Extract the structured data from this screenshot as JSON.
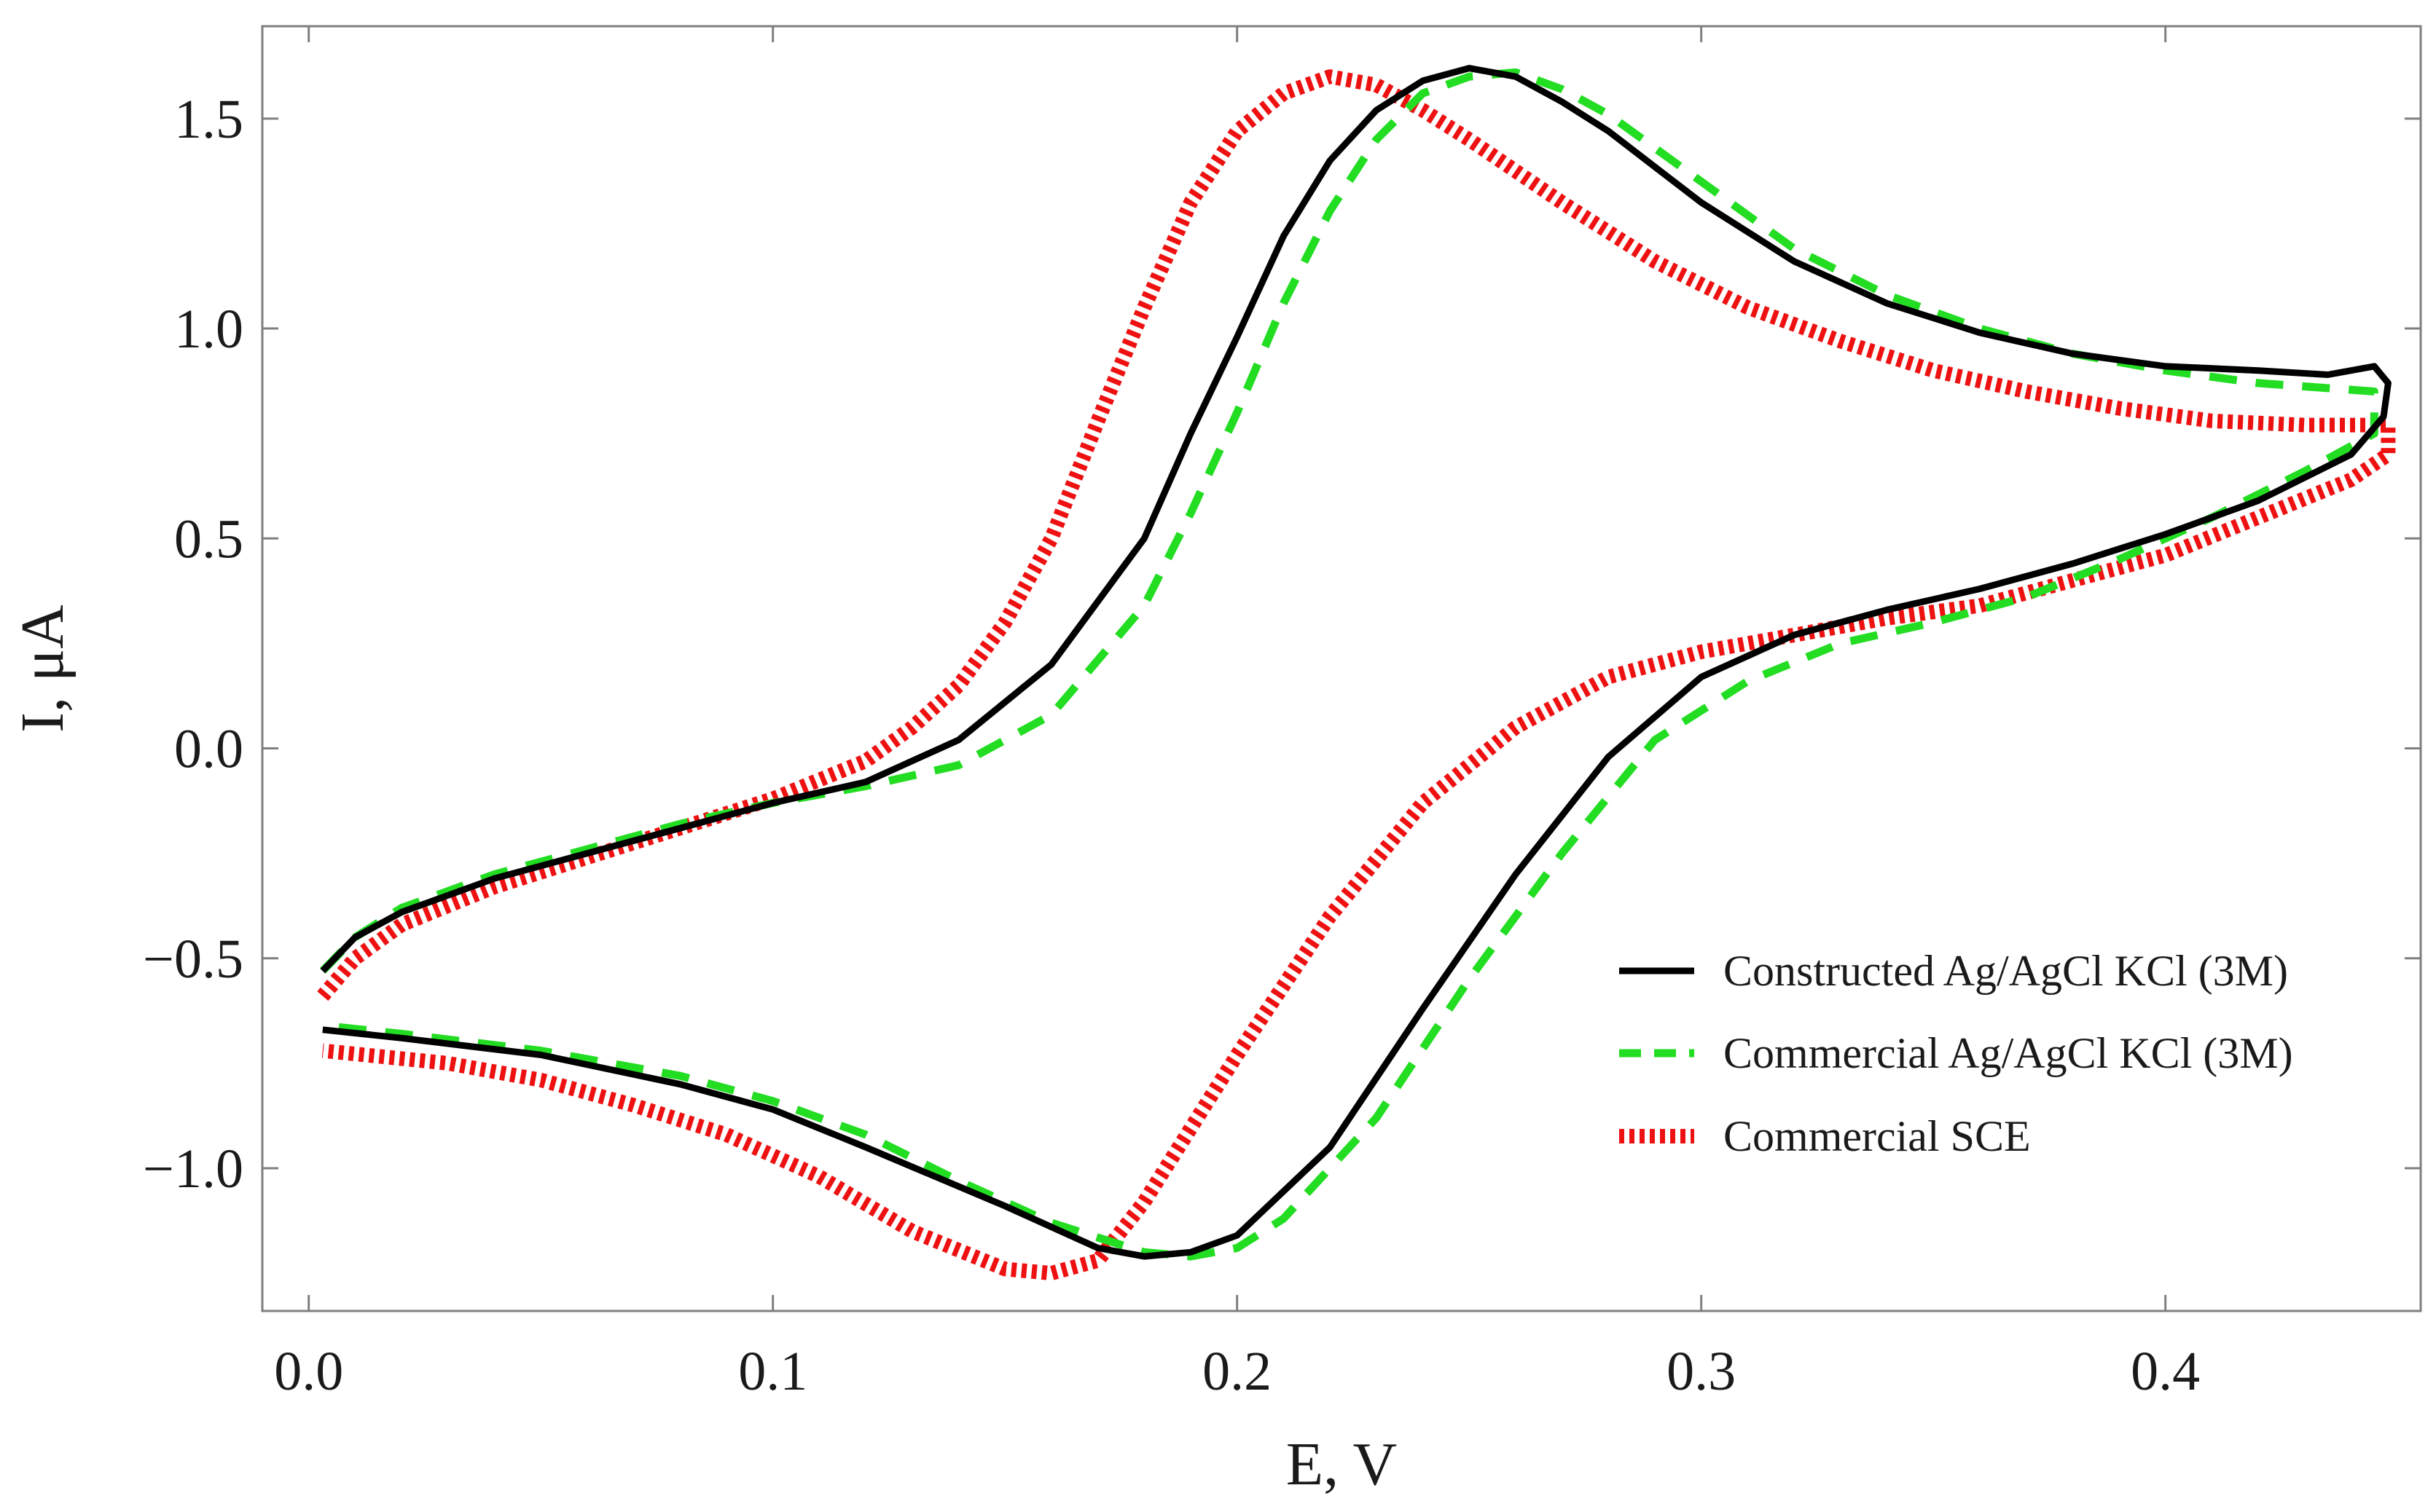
{
  "chart_data": {
    "type": "line",
    "xlabel": "E, V",
    "ylabel": "I, μA",
    "xlim": [
      -0.01,
      0.455
    ],
    "ylim": [
      -1.34,
      1.72
    ],
    "xticks": [
      {
        "value": 0.0,
        "label": "0.0"
      },
      {
        "value": 0.1,
        "label": "0.1"
      },
      {
        "value": 0.2,
        "label": "0.2"
      },
      {
        "value": 0.3,
        "label": "0.3"
      },
      {
        "value": 0.4,
        "label": "0.4"
      }
    ],
    "yticks": [
      {
        "value": -1.0,
        "label": "−1.0"
      },
      {
        "value": -0.5,
        "label": "−0.5"
      },
      {
        "value": 0.0,
        "label": "0.0"
      },
      {
        "value": 0.5,
        "label": "0.5"
      },
      {
        "value": 1.0,
        "label": "1.0"
      },
      {
        "value": 1.5,
        "label": "1.5"
      }
    ],
    "grid": false,
    "legend_position": "bottom-right",
    "series": [
      {
        "name": "Constructed Ag/AgCl KCl (3M)",
        "color": "#000000",
        "style": "solid",
        "points": [
          [
            0.003,
            -0.53
          ],
          [
            0.01,
            -0.45
          ],
          [
            0.02,
            -0.39
          ],
          [
            0.04,
            -0.31
          ],
          [
            0.06,
            -0.25
          ],
          [
            0.08,
            -0.19
          ],
          [
            0.1,
            -0.13
          ],
          [
            0.12,
            -0.08
          ],
          [
            0.14,
            0.02
          ],
          [
            0.16,
            0.2
          ],
          [
            0.18,
            0.5
          ],
          [
            0.19,
            0.75
          ],
          [
            0.2,
            0.98
          ],
          [
            0.21,
            1.22
          ],
          [
            0.22,
            1.4
          ],
          [
            0.23,
            1.52
          ],
          [
            0.24,
            1.59
          ],
          [
            0.25,
            1.62
          ],
          [
            0.26,
            1.6
          ],
          [
            0.27,
            1.54
          ],
          [
            0.28,
            1.47
          ],
          [
            0.3,
            1.3
          ],
          [
            0.32,
            1.16
          ],
          [
            0.34,
            1.06
          ],
          [
            0.36,
            0.99
          ],
          [
            0.38,
            0.94
          ],
          [
            0.4,
            0.91
          ],
          [
            0.42,
            0.9
          ],
          [
            0.435,
            0.89
          ],
          [
            0.445,
            0.91
          ],
          [
            0.448,
            0.87
          ],
          [
            0.447,
            0.79
          ],
          [
            0.44,
            0.7
          ],
          [
            0.42,
            0.59
          ],
          [
            0.4,
            0.51
          ],
          [
            0.38,
            0.44
          ],
          [
            0.36,
            0.38
          ],
          [
            0.34,
            0.33
          ],
          [
            0.32,
            0.27
          ],
          [
            0.3,
            0.17
          ],
          [
            0.28,
            -0.02
          ],
          [
            0.26,
            -0.3
          ],
          [
            0.24,
            -0.62
          ],
          [
            0.22,
            -0.95
          ],
          [
            0.2,
            -1.16
          ],
          [
            0.19,
            -1.2
          ],
          [
            0.18,
            -1.21
          ],
          [
            0.17,
            -1.19
          ],
          [
            0.15,
            -1.09
          ],
          [
            0.12,
            -0.95
          ],
          [
            0.1,
            -0.86
          ],
          [
            0.08,
            -0.8
          ],
          [
            0.05,
            -0.73
          ],
          [
            0.02,
            -0.69
          ],
          [
            0.003,
            -0.67
          ]
        ]
      },
      {
        "name": "Commercial Ag/AgCl KCl (3M)",
        "color": "#22dd22",
        "style": "dashed",
        "points": [
          [
            0.003,
            -0.53
          ],
          [
            0.01,
            -0.45
          ],
          [
            0.02,
            -0.38
          ],
          [
            0.04,
            -0.3
          ],
          [
            0.06,
            -0.24
          ],
          [
            0.08,
            -0.18
          ],
          [
            0.1,
            -0.13
          ],
          [
            0.12,
            -0.09
          ],
          [
            0.14,
            -0.04
          ],
          [
            0.16,
            0.08
          ],
          [
            0.18,
            0.34
          ],
          [
            0.19,
            0.56
          ],
          [
            0.2,
            0.8
          ],
          [
            0.21,
            1.06
          ],
          [
            0.22,
            1.28
          ],
          [
            0.23,
            1.45
          ],
          [
            0.24,
            1.56
          ],
          [
            0.25,
            1.6
          ],
          [
            0.26,
            1.61
          ],
          [
            0.27,
            1.57
          ],
          [
            0.28,
            1.51
          ],
          [
            0.3,
            1.35
          ],
          [
            0.32,
            1.19
          ],
          [
            0.34,
            1.08
          ],
          [
            0.36,
            1.0
          ],
          [
            0.38,
            0.94
          ],
          [
            0.4,
            0.9
          ],
          [
            0.42,
            0.87
          ],
          [
            0.445,
            0.85
          ],
          [
            0.445,
            0.75
          ],
          [
            0.43,
            0.66
          ],
          [
            0.41,
            0.55
          ],
          [
            0.39,
            0.45
          ],
          [
            0.37,
            0.36
          ],
          [
            0.35,
            0.3
          ],
          [
            0.33,
            0.25
          ],
          [
            0.31,
            0.16
          ],
          [
            0.29,
            0.02
          ],
          [
            0.27,
            -0.25
          ],
          [
            0.25,
            -0.55
          ],
          [
            0.23,
            -0.88
          ],
          [
            0.21,
            -1.12
          ],
          [
            0.2,
            -1.19
          ],
          [
            0.19,
            -1.21
          ],
          [
            0.18,
            -1.2
          ],
          [
            0.16,
            -1.13
          ],
          [
            0.14,
            -1.03
          ],
          [
            0.12,
            -0.92
          ],
          [
            0.1,
            -0.84
          ],
          [
            0.08,
            -0.78
          ],
          [
            0.05,
            -0.72
          ],
          [
            0.02,
            -0.68
          ],
          [
            0.003,
            -0.66
          ]
        ]
      },
      {
        "name": "Commercial SCE",
        "color": "#ee1111",
        "style": "dotted",
        "points": [
          [
            0.003,
            -0.59
          ],
          [
            0.01,
            -0.5
          ],
          [
            0.02,
            -0.42
          ],
          [
            0.04,
            -0.33
          ],
          [
            0.06,
            -0.26
          ],
          [
            0.08,
            -0.19
          ],
          [
            0.1,
            -0.12
          ],
          [
            0.12,
            -0.03
          ],
          [
            0.13,
            0.05
          ],
          [
            0.14,
            0.15
          ],
          [
            0.15,
            0.3
          ],
          [
            0.16,
            0.5
          ],
          [
            0.17,
            0.78
          ],
          [
            0.18,
            1.05
          ],
          [
            0.19,
            1.3
          ],
          [
            0.2,
            1.47
          ],
          [
            0.21,
            1.56
          ],
          [
            0.22,
            1.6
          ],
          [
            0.23,
            1.58
          ],
          [
            0.24,
            1.52
          ],
          [
            0.25,
            1.45
          ],
          [
            0.27,
            1.3
          ],
          [
            0.29,
            1.16
          ],
          [
            0.31,
            1.05
          ],
          [
            0.33,
            0.97
          ],
          [
            0.35,
            0.9
          ],
          [
            0.37,
            0.85
          ],
          [
            0.39,
            0.81
          ],
          [
            0.41,
            0.78
          ],
          [
            0.43,
            0.77
          ],
          [
            0.448,
            0.77
          ],
          [
            0.448,
            0.7
          ],
          [
            0.44,
            0.64
          ],
          [
            0.42,
            0.55
          ],
          [
            0.4,
            0.46
          ],
          [
            0.38,
            0.4
          ],
          [
            0.36,
            0.34
          ],
          [
            0.34,
            0.31
          ],
          [
            0.32,
            0.27
          ],
          [
            0.3,
            0.23
          ],
          [
            0.28,
            0.17
          ],
          [
            0.26,
            0.05
          ],
          [
            0.24,
            -0.13
          ],
          [
            0.22,
            -0.4
          ],
          [
            0.2,
            -0.73
          ],
          [
            0.18,
            -1.08
          ],
          [
            0.17,
            -1.22
          ],
          [
            0.16,
            -1.25
          ],
          [
            0.15,
            -1.24
          ],
          [
            0.13,
            -1.15
          ],
          [
            0.11,
            -1.02
          ],
          [
            0.09,
            -0.92
          ],
          [
            0.07,
            -0.85
          ],
          [
            0.05,
            -0.79
          ],
          [
            0.03,
            -0.75
          ],
          [
            0.003,
            -0.72
          ]
        ]
      }
    ]
  }
}
